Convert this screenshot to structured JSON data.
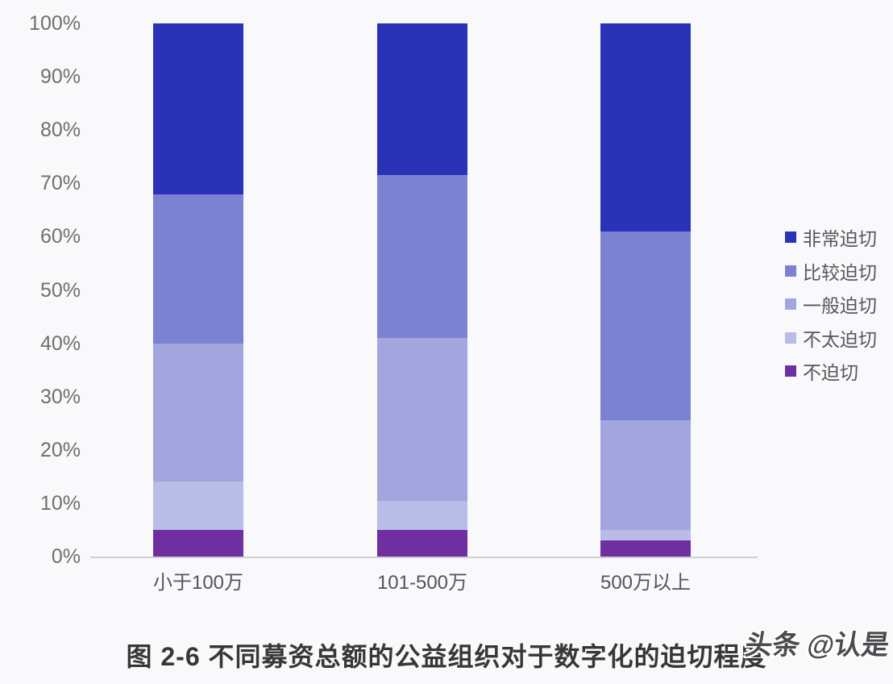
{
  "page": {
    "background": "#f9f9fb",
    "watermark": "头条 @认是"
  },
  "chart_data": {
    "type": "bar",
    "variant": "stacked-100-percent",
    "title": "图 2-6 不同募资总额的公益组织对于数字化的迫切程度",
    "categories": [
      "小于100万",
      "101-500万",
      "500万以上"
    ],
    "series": [
      {
        "name": "非常迫切",
        "color": "#2a33b8",
        "values": [
          32,
          28.5,
          39
        ]
      },
      {
        "name": "比较迫切",
        "color": "#7b82d1",
        "values": [
          28,
          30.5,
          35.5
        ]
      },
      {
        "name": "一般迫切",
        "color": "#a3a6de",
        "values": [
          26,
          30.5,
          20.5
        ]
      },
      {
        "name": "不太迫切",
        "color": "#b9bce6",
        "values": [
          9,
          5.5,
          2
        ]
      },
      {
        "name": "不迫切",
        "color": "#6f2fa0",
        "values": [
          5,
          5,
          3
        ]
      }
    ],
    "y_ticks": [
      "100%",
      "90%",
      "80%",
      "70%",
      "60%",
      "50%",
      "40%",
      "30%",
      "20%",
      "10%",
      "0%"
    ],
    "ylim": [
      0,
      100
    ],
    "grid": false,
    "legend_position": "right",
    "axis_line_color": "#cfcfd6",
    "tick_label_color": "#6f6f6f",
    "category_label_color": "#55555a",
    "title_color": "#373737"
  }
}
